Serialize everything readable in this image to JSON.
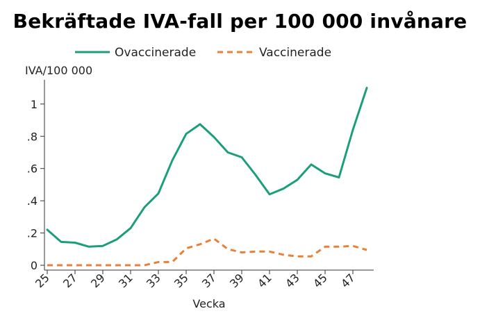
{
  "chart_data": {
    "type": "line",
    "title": "Bekräftade IVA-fall per 100 000 invånare",
    "xlabel": "Vecka",
    "ylabel": "IVA/100 000",
    "x": [
      25,
      26,
      27,
      28,
      29,
      30,
      31,
      32,
      33,
      34,
      35,
      36,
      37,
      38,
      39,
      40,
      41,
      42,
      43,
      44,
      45,
      46,
      47,
      48
    ],
    "xticks": [
      25,
      27,
      29,
      31,
      33,
      35,
      37,
      39,
      41,
      43,
      45,
      47
    ],
    "yticks": [
      0,
      0.2,
      0.4,
      0.6,
      0.8,
      1
    ],
    "ytick_labels": [
      "0",
      ".2",
      ".4",
      ".6",
      ".8",
      "1"
    ],
    "xlim": [
      24.8,
      48.5
    ],
    "ylim": [
      -0.03,
      1.15
    ],
    "grid": false,
    "legend_position": "top",
    "series": [
      {
        "name": "Ovaccinerade",
        "color": "#1a9e7c",
        "style": "solid",
        "values": [
          0.22,
          0.145,
          0.14,
          0.115,
          0.12,
          0.16,
          0.23,
          0.36,
          0.445,
          0.65,
          0.815,
          0.875,
          0.795,
          0.7,
          0.67,
          0.56,
          0.44,
          0.475,
          0.53,
          0.625,
          0.57,
          0.545,
          0.84,
          1.1
        ]
      },
      {
        "name": "Vaccinerade",
        "color": "#e8803a",
        "style": "dashed",
        "values": [
          0.0,
          0.0,
          0.0,
          0.0,
          0.0,
          0.0,
          0.0,
          0.0,
          0.02,
          0.02,
          0.105,
          0.13,
          0.165,
          0.1,
          0.08,
          0.085,
          0.085,
          0.065,
          0.055,
          0.055,
          0.115,
          0.115,
          0.12,
          0.095
        ]
      }
    ]
  }
}
